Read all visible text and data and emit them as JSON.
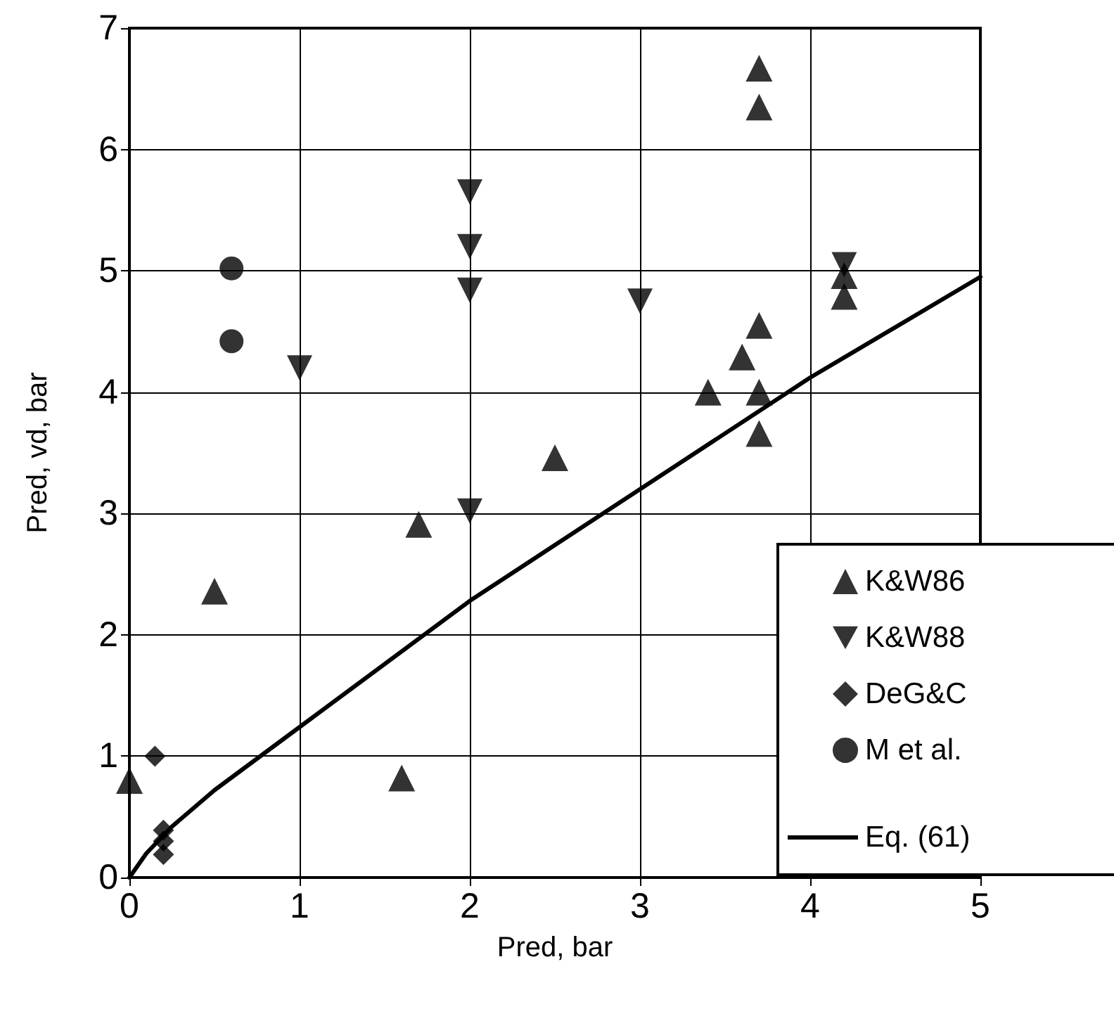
{
  "chart_data": {
    "type": "scatter",
    "xlabel": "Pred, bar",
    "ylabel": "Pred, vd, bar",
    "xlim": [
      0,
      5
    ],
    "xticks": [
      0,
      1,
      2,
      3,
      4,
      5
    ],
    "ylim": [
      0,
      7
    ],
    "yticks": [
      0,
      1,
      2,
      3,
      4,
      5,
      6,
      7
    ],
    "grid": true,
    "legend": "bottom right",
    "series": [
      {
        "name": "K&W86",
        "color": "#000000",
        "marker": "triangle",
        "x": [
          0,
          0.5,
          1.6,
          1.7,
          2.5,
          3.4,
          3.6,
          3.7,
          3.7,
          3.7,
          3.7,
          3.7,
          4.2,
          4.2
        ],
        "values": [
          0.8,
          2.36,
          0.82,
          2.91,
          3.46,
          4.0,
          4.29,
          4.55,
          4.0,
          3.66,
          6.35,
          6.67,
          4.96,
          4.79
        ]
      },
      {
        "name": "K&W88",
        "color": "#000000",
        "marker": "triangle-down",
        "x": [
          1,
          2,
          2,
          2,
          2,
          3,
          4.2
        ],
        "values": [
          4.2,
          5.65,
          5.2,
          4.84,
          3.02,
          4.75,
          5.05
        ]
      },
      {
        "name": "DeG&C",
        "color": "#000000",
        "marker": "diamond",
        "x": [
          0.15,
          0.2,
          0.2,
          0.2
        ],
        "values": [
          1.0,
          0.39,
          0.3,
          0.19
        ]
      },
      {
        "name": "M et al.",
        "color": "#000000",
        "marker": "circle",
        "x": [
          0.6,
          0.6
        ],
        "values": [
          5.02,
          4.42
        ]
      },
      {
        "name": "Eq. (61)",
        "type": "line",
        "color": "#000000",
        "marker": "none",
        "line_style": "solid",
        "x": [
          0,
          0.1,
          0.25,
          0.5,
          1,
          2,
          3,
          4,
          5
        ],
        "values": [
          0,
          0.2,
          0.42,
          0.72,
          1.24,
          2.28,
          3.2,
          4.12,
          4.95
        ]
      }
    ]
  }
}
